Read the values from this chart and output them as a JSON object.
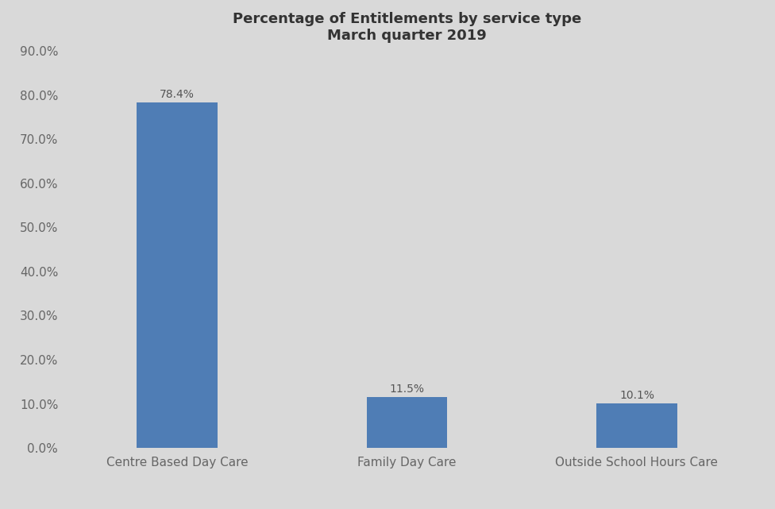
{
  "title": "Percentage of Entitlements by service type\nMarch quarter 2019",
  "categories": [
    "Centre Based Day Care",
    "Family Day Care",
    "Outside School Hours Care"
  ],
  "values": [
    78.4,
    11.5,
    10.1
  ],
  "bar_color": "#4f7db5",
  "background_color": "#d9d9d9",
  "ylim": [
    0,
    90
  ],
  "yticks": [
    0,
    10,
    20,
    30,
    40,
    50,
    60,
    70,
    80,
    90
  ],
  "ytick_labels": [
    "0.0%",
    "10.0%",
    "20.0%",
    "30.0%",
    "40.0%",
    "50.0%",
    "60.0%",
    "70.0%",
    "80.0%",
    "90.0%"
  ],
  "title_fontsize": 13,
  "tick_fontsize": 11,
  "label_fontsize": 11,
  "annotation_fontsize": 10,
  "bar_width": 0.35
}
